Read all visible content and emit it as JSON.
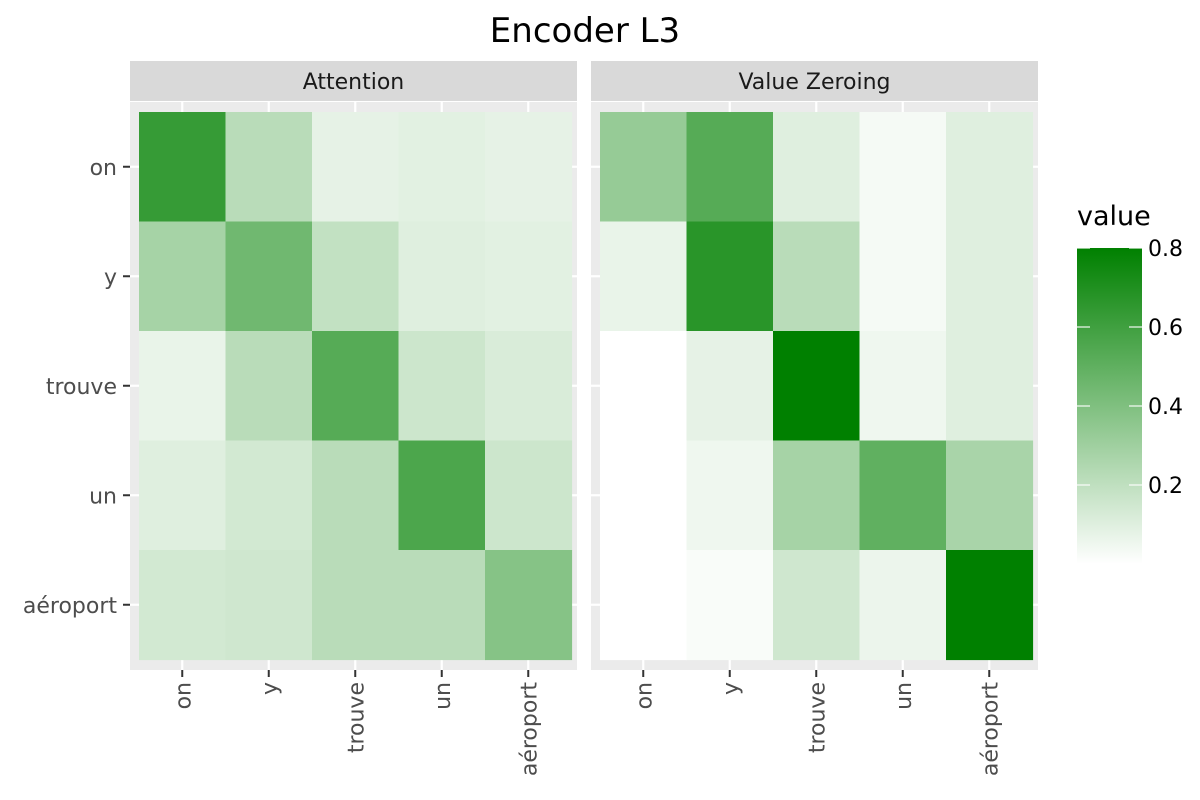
{
  "chart_data": {
    "type": "heatmap",
    "title": "Encoder L3",
    "tokens": [
      "on",
      "y",
      "trouve",
      "un",
      "aéroport"
    ],
    "panels": [
      {
        "name": "Attention",
        "values": [
          [
            0.63,
            0.22,
            0.08,
            0.09,
            0.08
          ],
          [
            0.28,
            0.45,
            0.19,
            0.1,
            0.09
          ],
          [
            0.07,
            0.22,
            0.53,
            0.16,
            0.12
          ],
          [
            0.1,
            0.14,
            0.22,
            0.56,
            0.16
          ],
          [
            0.14,
            0.15,
            0.22,
            0.22,
            0.38
          ]
        ]
      },
      {
        "name": "Value Zeroing",
        "values": [
          [
            0.33,
            0.53,
            0.1,
            0.03,
            0.1
          ],
          [
            0.07,
            0.67,
            0.22,
            0.03,
            0.1
          ],
          [
            0.0,
            0.08,
            0.8,
            0.05,
            0.1
          ],
          [
            0.0,
            0.05,
            0.28,
            0.5,
            0.27
          ],
          [
            0.0,
            0.02,
            0.15,
            0.06,
            0.8
          ]
        ]
      }
    ],
    "legend": {
      "title": "value",
      "ticks": [
        "0.2",
        "0.4",
        "0.6",
        "0.8"
      ],
      "tick_values": [
        0.2,
        0.4,
        0.6,
        0.8
      ],
      "range": [
        0.0,
        0.8
      ],
      "position": "right"
    },
    "colors": {
      "low": "#ffffff",
      "high": "#008000",
      "panel_background": "#ebebeb",
      "strip_background": "#d9d9d9",
      "grid": "#ffffff"
    }
  }
}
